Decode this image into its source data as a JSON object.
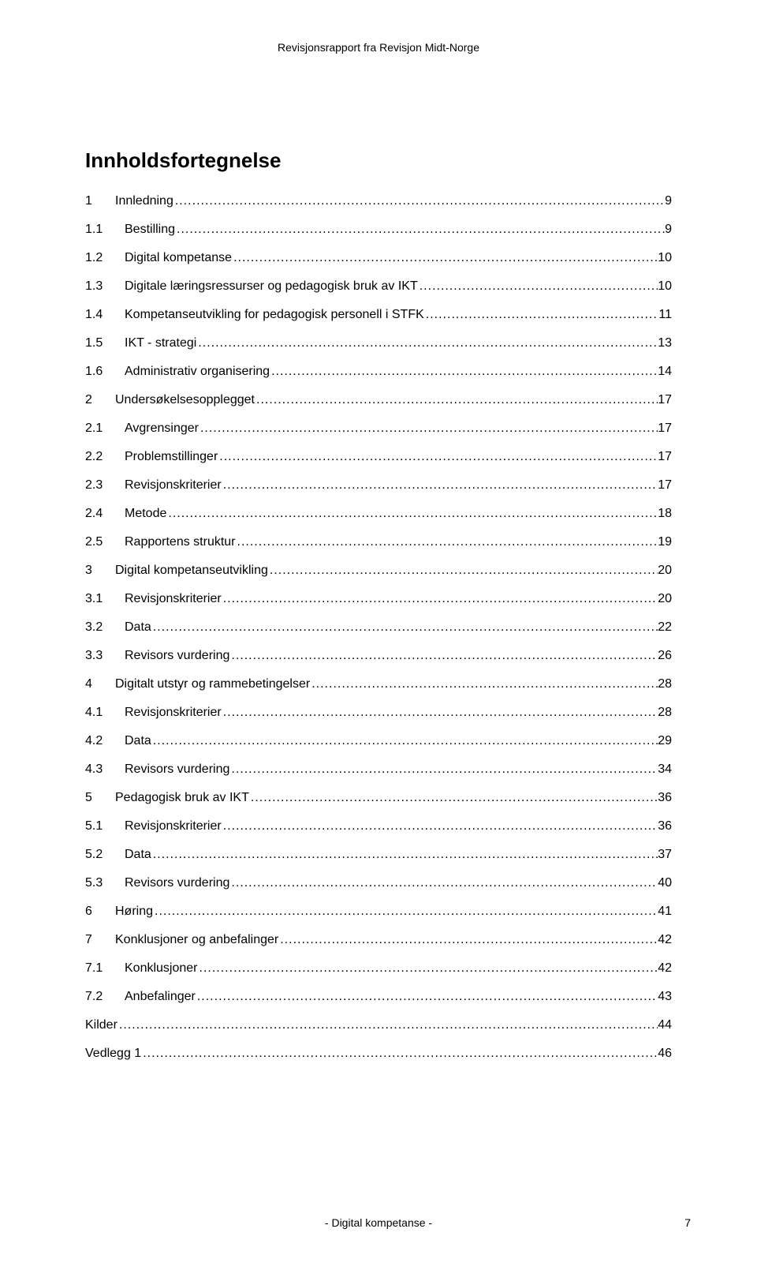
{
  "header": {
    "text": "Revisjonsrapport fra Revisjon Midt-Norge"
  },
  "title": "Innholdsfortegnelse",
  "toc": [
    {
      "num": "1",
      "indent": 0,
      "label": "Innledning",
      "page": "9",
      "padPage": true
    },
    {
      "num": "1.1",
      "indent": 1,
      "label": "Bestilling",
      "page": "9",
      "padPage": true
    },
    {
      "num": "1.2",
      "indent": 1,
      "label": "Digital kompetanse",
      "page": "10"
    },
    {
      "num": "1.3",
      "indent": 1,
      "label": "Digitale læringsressurser og pedagogisk bruk av IKT",
      "page": "10"
    },
    {
      "num": "1.4",
      "indent": 1,
      "label": "Kompetanseutvikling for pedagogisk personell i STFK",
      "page": "11"
    },
    {
      "num": "1.5",
      "indent": 1,
      "label": "IKT - strategi",
      "page": "13"
    },
    {
      "num": "1.6",
      "indent": 1,
      "label": "Administrativ organisering",
      "page": "14"
    },
    {
      "num": "2",
      "indent": 0,
      "label": "Undersøkelsesopplegget",
      "page": "17"
    },
    {
      "num": "2.1",
      "indent": 1,
      "label": "Avgrensinger",
      "page": "17"
    },
    {
      "num": "2.2",
      "indent": 1,
      "label": "Problemstillinger",
      "page": "17"
    },
    {
      "num": "2.3",
      "indent": 1,
      "label": "Revisjonskriterier",
      "page": "17"
    },
    {
      "num": "2.4",
      "indent": 1,
      "label": "Metode",
      "page": "18"
    },
    {
      "num": "2.5",
      "indent": 1,
      "label": "Rapportens struktur",
      "page": "19"
    },
    {
      "num": "3",
      "indent": 0,
      "label": "Digital kompetanseutvikling",
      "page": "20"
    },
    {
      "num": "3.1",
      "indent": 1,
      "label": "Revisjonskriterier",
      "page": "20"
    },
    {
      "num": "3.2",
      "indent": 1,
      "label": "Data",
      "page": "22"
    },
    {
      "num": "3.3",
      "indent": 1,
      "label": "Revisors vurdering",
      "page": "26"
    },
    {
      "num": "4",
      "indent": 0,
      "label": "Digitalt utstyr og rammebetingelser",
      "page": "28"
    },
    {
      "num": "4.1",
      "indent": 1,
      "label": "Revisjonskriterier",
      "page": "28"
    },
    {
      "num": "4.2",
      "indent": 1,
      "label": "Data",
      "page": "29"
    },
    {
      "num": "4.3",
      "indent": 1,
      "label": "Revisors vurdering",
      "page": "34"
    },
    {
      "num": "5",
      "indent": 0,
      "label": "Pedagogisk bruk av IKT",
      "page": "36"
    },
    {
      "num": "5.1",
      "indent": 1,
      "label": "Revisjonskriterier",
      "page": "36"
    },
    {
      "num": "5.2",
      "indent": 1,
      "label": "Data",
      "page": "37"
    },
    {
      "num": "5.3",
      "indent": 1,
      "label": "Revisors vurdering",
      "page": "40"
    },
    {
      "num": "6",
      "indent": 0,
      "label": "Høring",
      "page": "41"
    },
    {
      "num": "7",
      "indent": 0,
      "label": "Konklusjoner og anbefalinger",
      "page": "42"
    },
    {
      "num": "7.1",
      "indent": 1,
      "label": "Konklusjoner",
      "page": "42"
    },
    {
      "num": "7.2",
      "indent": 1,
      "label": "Anbefalinger",
      "page": "43"
    },
    {
      "num": "",
      "indent": -1,
      "label": "Kilder",
      "page": "44"
    },
    {
      "num": "",
      "indent": -1,
      "label": "Vedlegg 1",
      "page": "46"
    }
  ],
  "footer": {
    "text": "- Digital kompetanse -",
    "pageNumber": "7"
  },
  "style": {
    "fontFamily": "Arial, Helvetica, sans-serif",
    "bodyFontSize": 16,
    "titleFontSize": 26,
    "headerFontSize": 14,
    "textColor": "#000000",
    "backgroundColor": "#ffffff",
    "indentLevel0NumWidth": "38px",
    "indentLevel1NumWidth": "50px",
    "leaderChar": "."
  }
}
